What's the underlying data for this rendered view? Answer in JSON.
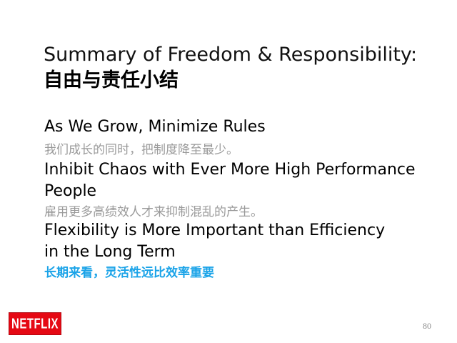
{
  "slide": {
    "title_en": "Summary of Freedom & Responsibility:",
    "title_zh": "自由与责任小结",
    "points": [
      {
        "en_line1": "As We Grow, Minimize Rules",
        "zh": "我们成长的同时，把制度降至最少。"
      },
      {
        "en_line1": "Inhibit Chaos with Ever More High Performance",
        "en_line2": "People",
        "zh": "雇用更多高绩效人才来抑制混乱的产生。"
      },
      {
        "en_line1": "Flexibility is More Important than Efficiency",
        "en_line2": "in the Long Term",
        "zh": "长期来看，灵活性远比效率重要"
      }
    ],
    "accent_color": "#1aa3e8",
    "brand_color": "#e50914"
  },
  "footer": {
    "logo_text": "NETFLIX",
    "page_number": "80"
  }
}
